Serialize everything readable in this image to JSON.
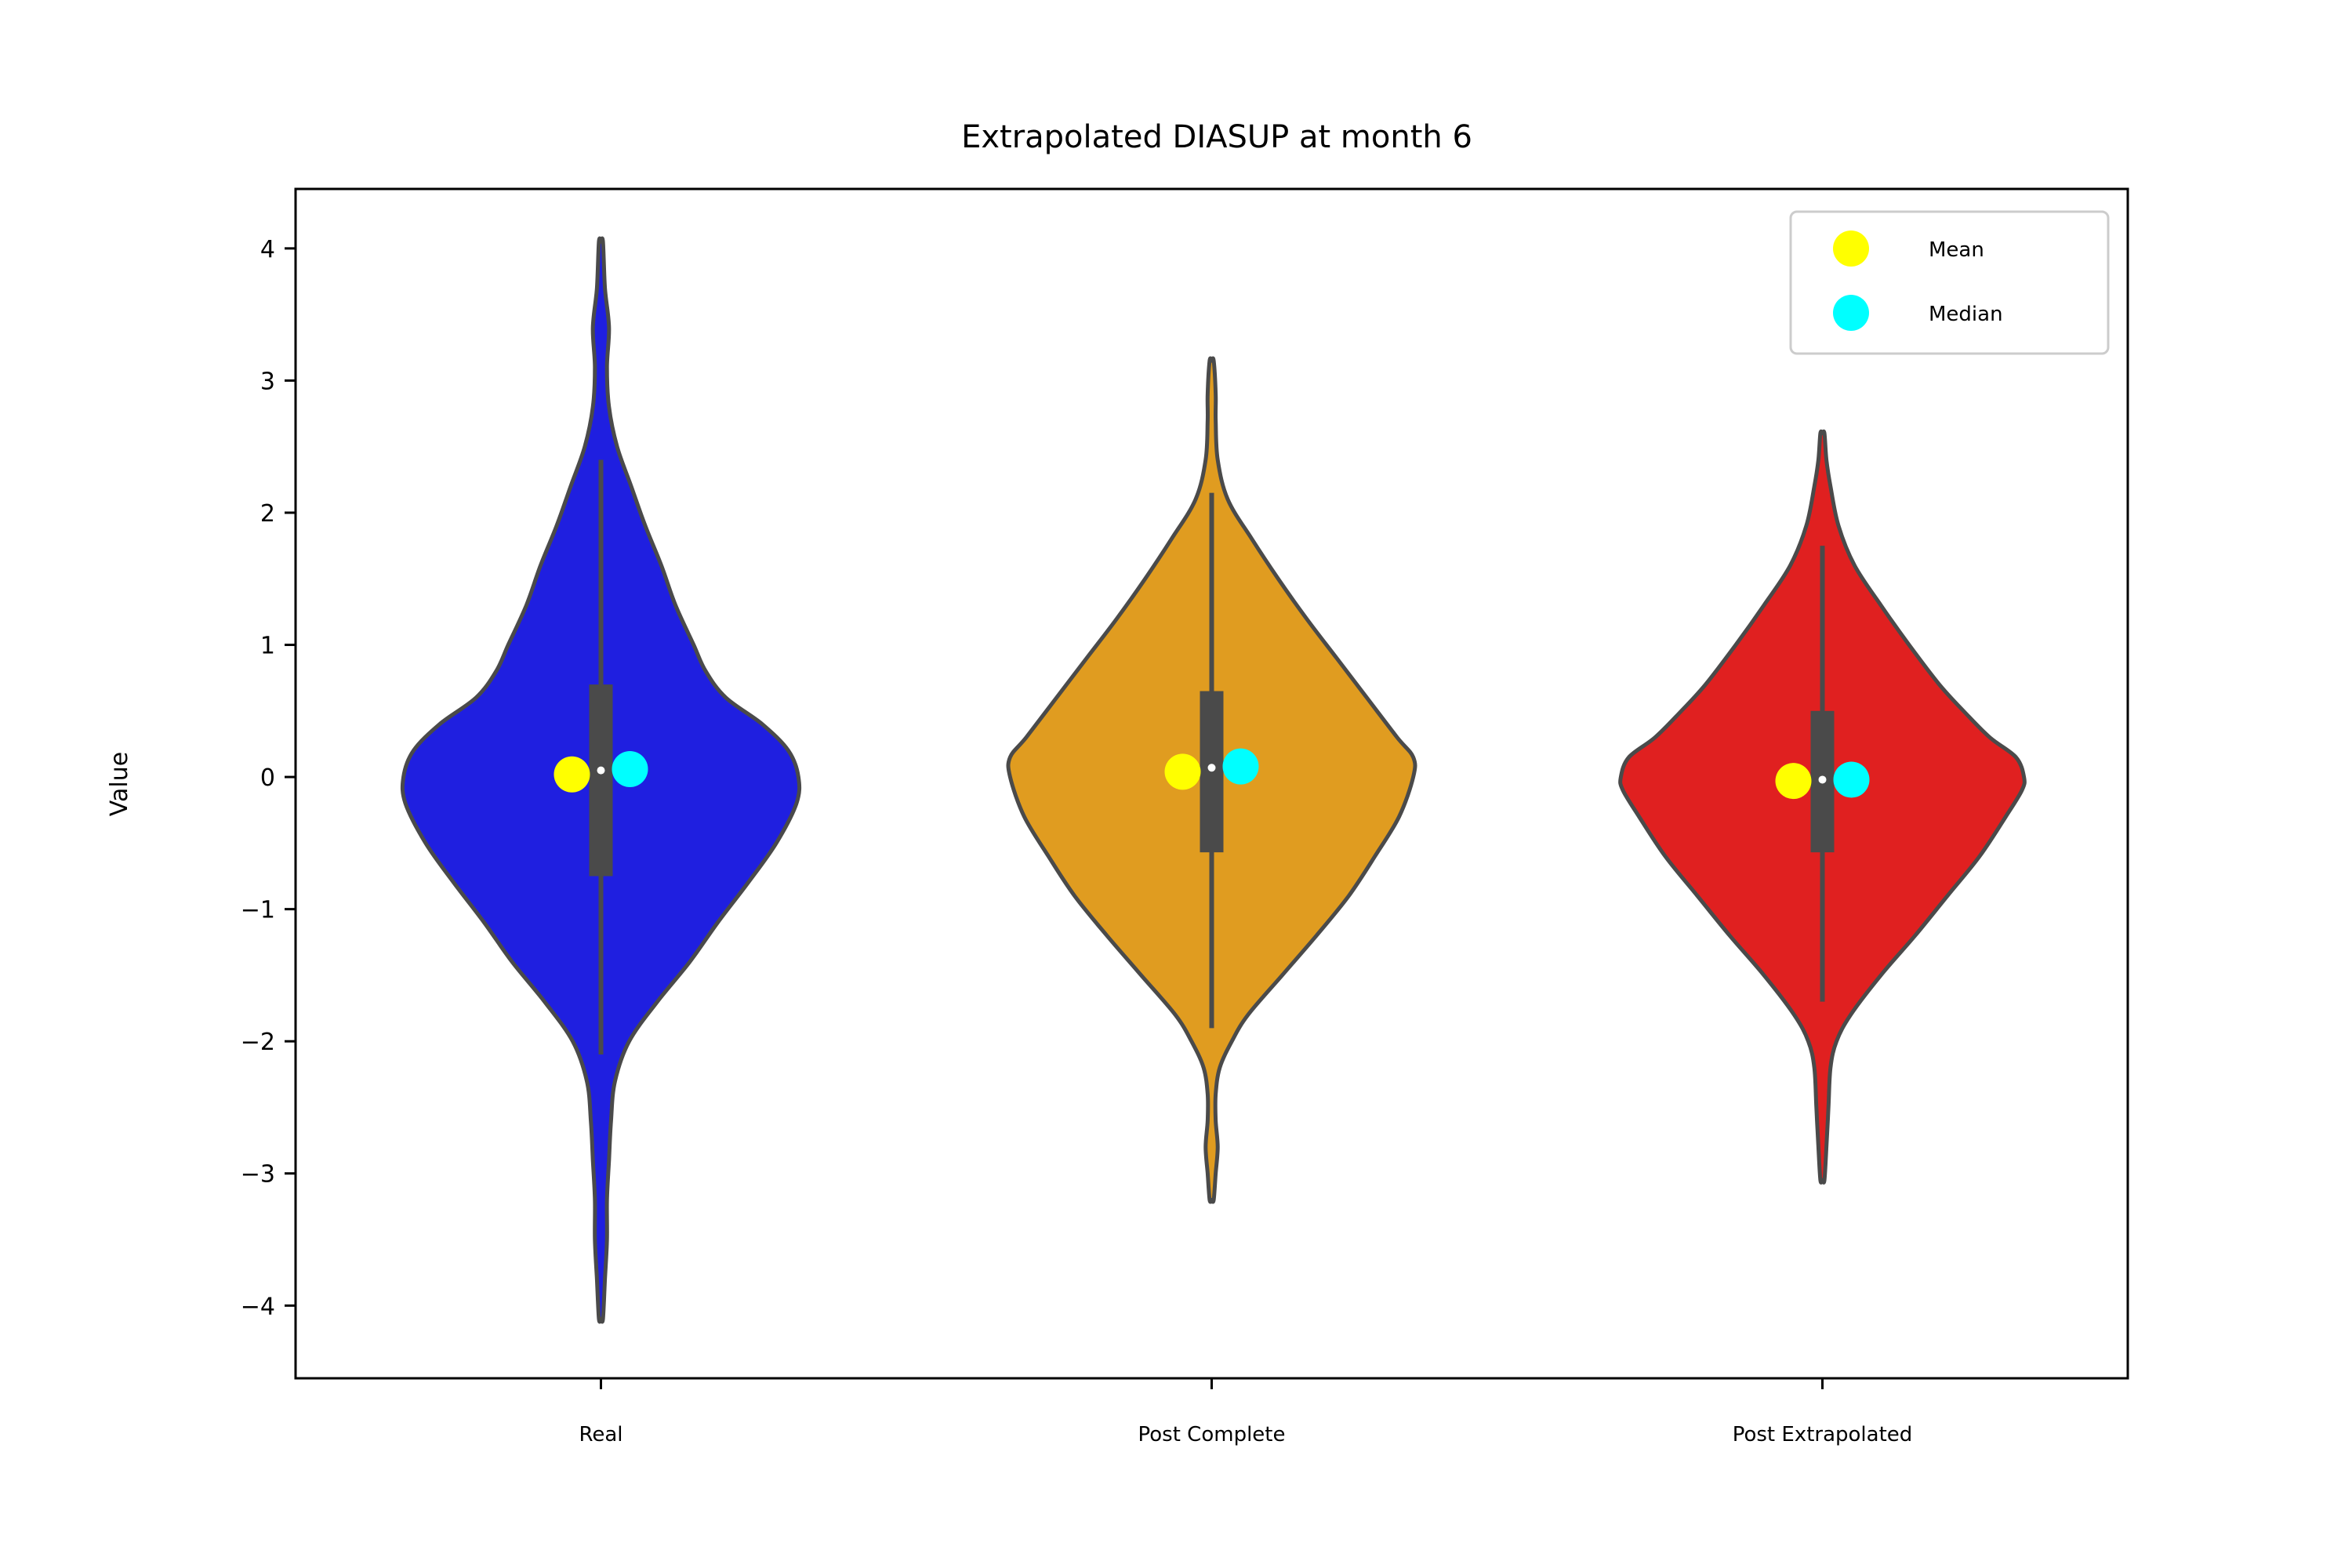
{
  "chart_data": {
    "type": "violin",
    "title": "Extrapolated DIASUP at month 6",
    "xlabel": "",
    "ylabel": "Value",
    "ylim": [
      -4.55,
      4.45
    ],
    "yticks": [
      -4,
      -3,
      -2,
      -1,
      0,
      1,
      2,
      3,
      4
    ],
    "ytick_labels": [
      "−4",
      "−3",
      "−2",
      "−1",
      "0",
      "1",
      "2",
      "3",
      "4"
    ],
    "grid": false,
    "legend": {
      "placement": "top-right",
      "entries": [
        {
          "label": "Mean",
          "color": "#ffff00"
        },
        {
          "label": "Median",
          "color": "#00ffff"
        }
      ]
    },
    "categories": [
      "Real",
      "Post Complete",
      "Post Extrapolated"
    ],
    "series": [
      {
        "category": "Real",
        "color": "#1f1fe0",
        "min": -4.1,
        "max": 4.05,
        "whisker_low": -2.1,
        "whisker_high": 2.4,
        "q1": -0.75,
        "median": 0.05,
        "q3": 0.7,
        "mean_marker": 0.02,
        "median_marker": 0.06,
        "density": [
          [
            -4.1,
            0.01
          ],
          [
            -3.8,
            0.02
          ],
          [
            -3.5,
            0.03
          ],
          [
            -3.2,
            0.03
          ],
          [
            -2.9,
            0.04
          ],
          [
            -2.6,
            0.05
          ],
          [
            -2.3,
            0.07
          ],
          [
            -2.0,
            0.14
          ],
          [
            -1.7,
            0.28
          ],
          [
            -1.4,
            0.44
          ],
          [
            -1.1,
            0.58
          ],
          [
            -0.8,
            0.73
          ],
          [
            -0.5,
            0.87
          ],
          [
            -0.2,
            0.97
          ],
          [
            0.0,
            0.98
          ],
          [
            0.2,
            0.93
          ],
          [
            0.4,
            0.8
          ],
          [
            0.6,
            0.62
          ],
          [
            0.8,
            0.52
          ],
          [
            1.0,
            0.46
          ],
          [
            1.3,
            0.37
          ],
          [
            1.6,
            0.3
          ],
          [
            1.9,
            0.22
          ],
          [
            2.2,
            0.15
          ],
          [
            2.5,
            0.08
          ],
          [
            2.8,
            0.04
          ],
          [
            3.1,
            0.03
          ],
          [
            3.4,
            0.04
          ],
          [
            3.7,
            0.02
          ],
          [
            4.05,
            0.01
          ]
        ]
      },
      {
        "category": "Post Complete",
        "color": "#e09c20",
        "min": -3.2,
        "max": 3.15,
        "whisker_low": -1.9,
        "whisker_high": 2.15,
        "q1": -0.57,
        "median": 0.07,
        "q3": 0.65,
        "mean_marker": 0.04,
        "median_marker": 0.08,
        "density": [
          [
            -3.2,
            0.01
          ],
          [
            -3.0,
            0.02
          ],
          [
            -2.8,
            0.03
          ],
          [
            -2.6,
            0.02
          ],
          [
            -2.4,
            0.02
          ],
          [
            -2.2,
            0.04
          ],
          [
            -2.0,
            0.1
          ],
          [
            -1.8,
            0.18
          ],
          [
            -1.5,
            0.35
          ],
          [
            -1.2,
            0.52
          ],
          [
            -0.9,
            0.68
          ],
          [
            -0.6,
            0.81
          ],
          [
            -0.3,
            0.93
          ],
          [
            0.0,
            1.0
          ],
          [
            0.15,
            1.0
          ],
          [
            0.3,
            0.92
          ],
          [
            0.6,
            0.77
          ],
          [
            0.9,
            0.62
          ],
          [
            1.2,
            0.47
          ],
          [
            1.5,
            0.33
          ],
          [
            1.8,
            0.2
          ],
          [
            2.1,
            0.08
          ],
          [
            2.4,
            0.03
          ],
          [
            2.7,
            0.02
          ],
          [
            2.9,
            0.02
          ],
          [
            3.15,
            0.01
          ]
        ]
      },
      {
        "category": "Post Extrapolated",
        "color": "#e02020",
        "min": -3.05,
        "max": 2.6,
        "whisker_low": -1.7,
        "whisker_high": 1.75,
        "q1": -0.57,
        "median": -0.02,
        "q3": 0.5,
        "mean_marker": -0.03,
        "median_marker": -0.02,
        "density": [
          [
            -3.05,
            0.01
          ],
          [
            -2.8,
            0.02
          ],
          [
            -2.5,
            0.03
          ],
          [
            -2.2,
            0.04
          ],
          [
            -2.0,
            0.07
          ],
          [
            -1.8,
            0.14
          ],
          [
            -1.5,
            0.29
          ],
          [
            -1.2,
            0.46
          ],
          [
            -0.9,
            0.62
          ],
          [
            -0.6,
            0.78
          ],
          [
            -0.3,
            0.91
          ],
          [
            -0.1,
            0.99
          ],
          [
            0.0,
            1.0
          ],
          [
            0.15,
            0.96
          ],
          [
            0.3,
            0.83
          ],
          [
            0.5,
            0.7
          ],
          [
            0.7,
            0.58
          ],
          [
            1.0,
            0.43
          ],
          [
            1.3,
            0.29
          ],
          [
            1.6,
            0.16
          ],
          [
            1.9,
            0.08
          ],
          [
            2.2,
            0.04
          ],
          [
            2.4,
            0.02
          ],
          [
            2.6,
            0.01
          ]
        ]
      }
    ]
  }
}
